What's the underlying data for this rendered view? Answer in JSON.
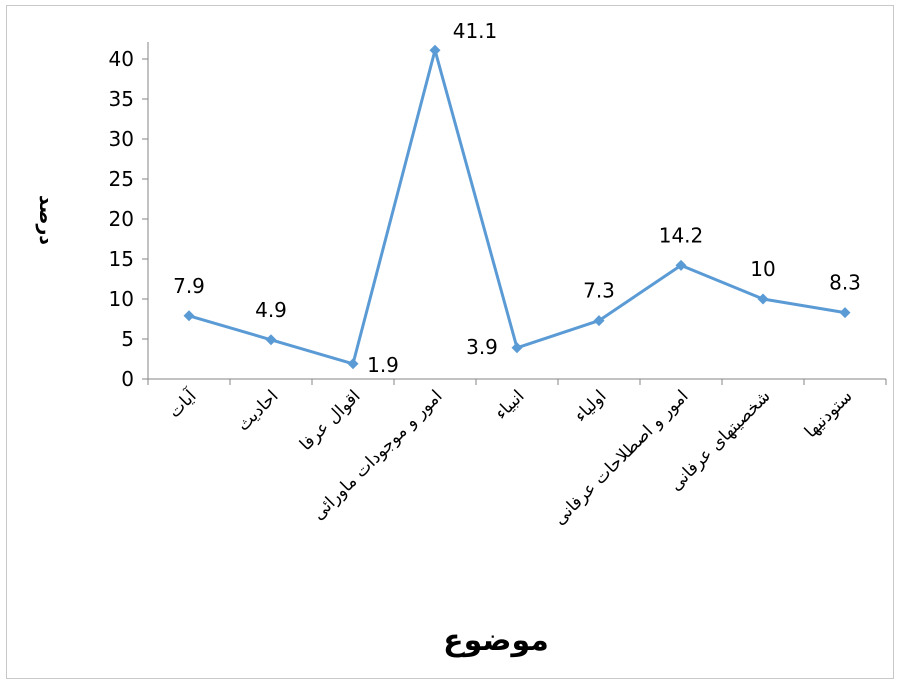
{
  "chart_data": {
    "type": "line",
    "title": "",
    "xlabel": "موضوع",
    "ylabel": "درصد",
    "ylim": [
      0,
      40
    ],
    "yticks": [
      0,
      5,
      10,
      15,
      20,
      25,
      30,
      35,
      40
    ],
    "categories": [
      "آیات",
      "احادیث",
      "اقوال عرفا",
      "امور و موجودات ماورائی",
      "انبیاء",
      "اولیاء",
      "امور و اصطلاحات عرفانی",
      "شخصیتهای عرفانی",
      "ستودنیها"
    ],
    "series": [
      {
        "name": "",
        "values": [
          7.9,
          4.9,
          1.9,
          41.1,
          3.9,
          7.3,
          14.2,
          10,
          8.3
        ],
        "data_labels": [
          "7.9",
          "4.9",
          "1.9",
          "41.1",
          "3.9",
          "7.3",
          "14.2",
          "10",
          "8.3"
        ]
      }
    ],
    "grid": false,
    "legend": "none",
    "colors": {
      "line": "#5b9bd5",
      "axis": "#868686",
      "text": "#000000",
      "frame": "#c8c8c8"
    }
  }
}
